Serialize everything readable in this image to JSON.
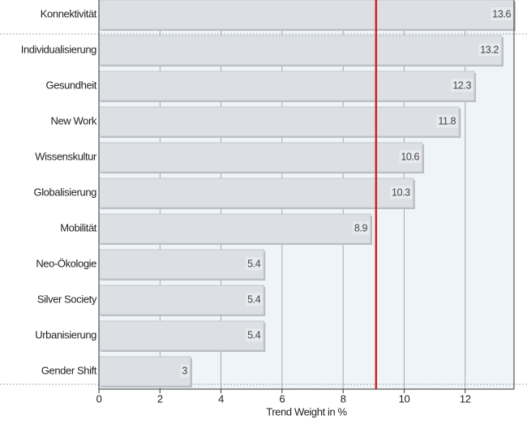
{
  "chart_data": {
    "type": "barh",
    "x_label": "Trend Weight in %",
    "categories": [
      "Konnektivität",
      "Individualisierung",
      "Gesundheit",
      "New Work",
      "Wissenskultur",
      "Globalisierung",
      "Mobilität",
      "Neo-Ökologie",
      "Silver Society",
      "Urbanisierung",
      "Gender Shift"
    ],
    "values": [
      13.6,
      13.2,
      12.3,
      11.8,
      10.6,
      10.3,
      8.9,
      5.4,
      5.4,
      5.4,
      3
    ],
    "color": "#dcdfe4",
    "xlim": [
      0,
      13.6
    ],
    "xticks": [
      0,
      2,
      4,
      6,
      8,
      10,
      12
    ],
    "grid": true,
    "reference_line": {
      "value": 9.08,
      "color": "#cc2222"
    }
  }
}
